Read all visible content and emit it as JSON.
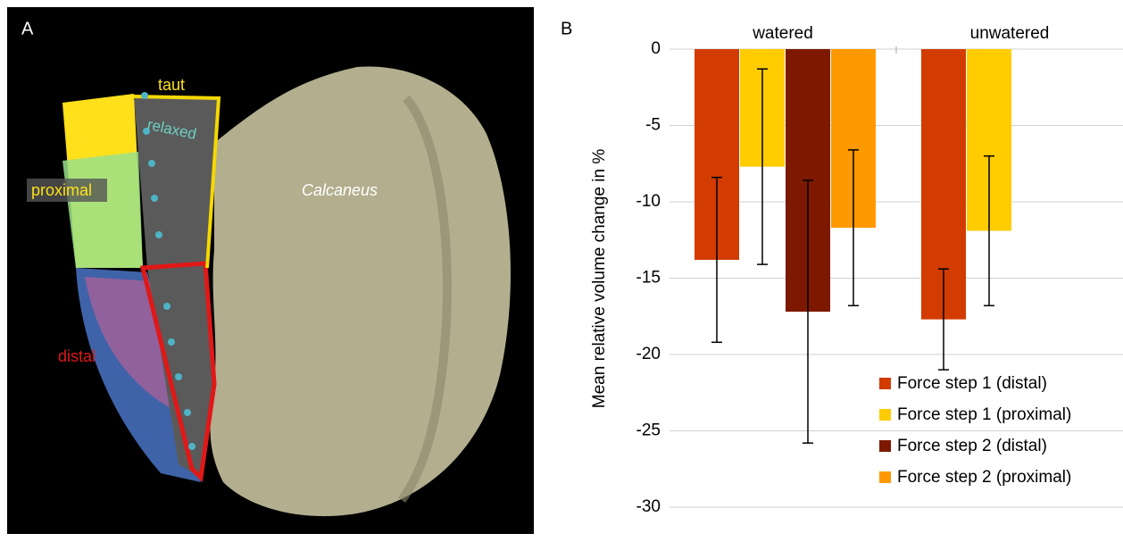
{
  "panel_a": {
    "label": "A",
    "annotations": {
      "taut": "taut",
      "relaxed": "relaxed",
      "proximal": "proximal",
      "calcaneus": "Calcaneus",
      "distal": "distal"
    }
  },
  "chart_data": {
    "type": "bar",
    "panel_label": "B",
    "y_label": "Mean relative volume change in %",
    "categories": [
      "watered",
      "unwatered"
    ],
    "series": [
      {
        "name": "Force step 1 (distal)",
        "color": "#d23c00",
        "values": [
          -13.8,
          -17.7
        ],
        "errors": [
          5.4,
          3.3
        ]
      },
      {
        "name": "Force step 1 (proximal)",
        "color": "#ffcc00",
        "values": [
          -7.7,
          -11.9
        ],
        "errors": [
          6.4,
          4.9
        ]
      },
      {
        "name": "Force step 2 (distal)",
        "color": "#7d1900",
        "values": [
          -17.2,
          null
        ],
        "errors": [
          8.6,
          null
        ]
      },
      {
        "name": "Force step 2 (proximal)",
        "color": "#ff9900",
        "values": [
          -11.7,
          null
        ],
        "errors": [
          5.1,
          null
        ]
      }
    ],
    "ylim": [
      -30,
      0
    ],
    "yticks": [
      0,
      -5,
      -10,
      -15,
      -20,
      -25,
      -30
    ],
    "grid": true,
    "legend": "lower right"
  }
}
